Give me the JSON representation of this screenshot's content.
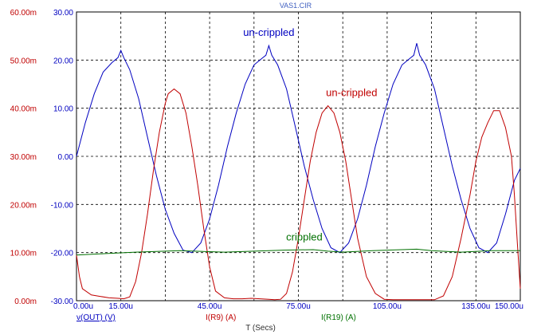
{
  "window": {
    "title": "VAS1.CIR"
  },
  "chart_data": {
    "type": "line",
    "title": "VAS1.CIR",
    "xlabel": "T (Secs)",
    "x_range": [
      0.0,
      0.00015
    ],
    "x_ticks": [
      "0.00u",
      "15.00u",
      "45.00u",
      "75.00u",
      "105.00u",
      "135.00u",
      "150.00u"
    ],
    "x_tick_values": [
      0,
      15,
      45,
      75,
      105,
      135,
      150
    ],
    "x_tick_unit": "us",
    "y_right_range": [
      -30,
      30
    ],
    "y_right_ticks": [
      "30.00",
      "20.00",
      "10.00",
      "0.00",
      "-10.00",
      "-20.00",
      "-30.00"
    ],
    "y_left_range": [
      0.0,
      0.06
    ],
    "y_left_ticks": [
      "60.00m",
      "50.00m",
      "40.00m",
      "30.00m",
      "20.00m",
      "10.00m",
      "0.00m"
    ],
    "grid": true,
    "series": [
      {
        "name": "v(OUT) (V)",
        "axis": "right",
        "color": "#0000c0",
        "x_us": [
          0,
          3,
          6,
          9,
          12,
          14,
          15,
          16,
          18,
          21,
          24,
          27,
          30,
          33,
          36,
          39,
          42,
          45,
          48,
          51,
          54,
          57,
          60,
          63,
          64,
          65,
          66,
          68,
          71,
          74,
          77,
          80,
          83,
          86,
          89,
          92,
          95,
          98,
          101,
          104,
          107,
          110,
          113,
          114,
          115,
          116,
          118,
          121,
          124,
          127,
          130,
          133,
          136,
          139,
          142,
          145,
          148,
          150
        ],
        "values": [
          0,
          7,
          13,
          17.5,
          19.5,
          20.5,
          22,
          20.5,
          18,
          12,
          4,
          -4,
          -11,
          -16,
          -19.5,
          -20,
          -18,
          -13,
          -6,
          2,
          9,
          15,
          19,
          20.5,
          21,
          23,
          21,
          19,
          14,
          6,
          -2,
          -9,
          -15,
          -19,
          -20,
          -18,
          -13,
          -6,
          2,
          9,
          15,
          19,
          20.5,
          21,
          23.5,
          21,
          19,
          14,
          6,
          -2,
          -9,
          -15,
          -19,
          -20,
          -18,
          -12,
          -5,
          -2.5
        ]
      },
      {
        "name": "I(R9) (A)",
        "axis": "left",
        "color": "#c00000",
        "x_us": [
          0,
          1,
          2,
          5,
          8,
          11,
          14,
          16,
          18,
          20,
          22,
          24,
          26,
          28,
          30,
          31,
          33,
          35,
          37,
          39,
          41,
          43,
          45,
          47,
          50,
          53,
          56,
          59,
          62,
          65,
          67,
          69,
          71,
          73,
          75,
          77,
          79,
          81,
          83,
          85,
          87,
          89,
          91,
          93,
          95,
          98,
          101,
          104,
          107,
          110,
          113,
          116,
          119,
          121,
          124,
          127,
          130,
          133,
          135,
          137,
          139,
          141,
          143,
          145,
          147,
          148,
          149,
          150
        ],
        "values": [
          0.0095,
          0.005,
          0.0025,
          0.0012,
          0.0009,
          0.0006,
          0.0005,
          0.0004,
          0.0008,
          0.004,
          0.01,
          0.018,
          0.027,
          0.035,
          0.041,
          0.043,
          0.044,
          0.043,
          0.039,
          0.032,
          0.024,
          0.015,
          0.007,
          0.002,
          0.0006,
          0.0004,
          0.0004,
          0.0005,
          0.0004,
          0.0003,
          0.0002,
          0.0003,
          0.0015,
          0.006,
          0.013,
          0.021,
          0.029,
          0.035,
          0.039,
          0.0405,
          0.039,
          0.035,
          0.029,
          0.021,
          0.013,
          0.005,
          0.0015,
          0.0003,
          0.0002,
          0.0002,
          0.0002,
          0.0002,
          0.0002,
          0.0002,
          0.001,
          0.005,
          0.013,
          0.022,
          0.029,
          0.034,
          0.037,
          0.0395,
          0.0395,
          0.036,
          0.03,
          0.022,
          0.012,
          0.0025
        ]
      },
      {
        "name": "I(R19) (A)",
        "axis": "left",
        "color": "#007000",
        "x_us": [
          0,
          10,
          20,
          30,
          35,
          40,
          50,
          60,
          70,
          80,
          85,
          90,
          100,
          110,
          115,
          120,
          130,
          140,
          150
        ],
        "values": [
          0.0095,
          0.0098,
          0.0101,
          0.0103,
          0.0104,
          0.0103,
          0.0101,
          0.0103,
          0.0105,
          0.0106,
          0.0103,
          0.0101,
          0.0104,
          0.0106,
          0.0107,
          0.0104,
          0.0101,
          0.0104,
          0.0104
        ]
      }
    ],
    "annotations": [
      {
        "text": "un-crippled",
        "color": "#0000c0",
        "x_us": 65,
        "y": 25
      },
      {
        "text": "un-crippled",
        "color": "#c00000",
        "x_us": 93,
        "y_left": 0.0425
      },
      {
        "text": "crippled",
        "color": "#007000",
        "x_us": 77,
        "y_left": 0.0125
      }
    ]
  }
}
